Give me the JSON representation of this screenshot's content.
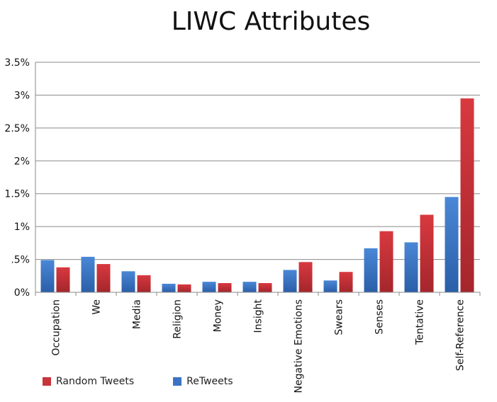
{
  "chart_data": {
    "type": "bar",
    "title": "LIWC Attributes",
    "xlabel": "",
    "ylabel": "",
    "categories": [
      "Occupation",
      "We",
      "Media",
      "Religion",
      "Money",
      "Insight",
      "Negative Emotions",
      "Swears",
      "Senses",
      "Tentative",
      "Self-Reference"
    ],
    "series": [
      {
        "name": "ReTweets",
        "color": "#3b74c4",
        "values": [
          0.49,
          0.54,
          0.32,
          0.13,
          0.16,
          0.16,
          0.34,
          0.18,
          0.67,
          0.76,
          1.45
        ]
      },
      {
        "name": "Random Tweets",
        "color": "#c9333a",
        "values": [
          0.38,
          0.43,
          0.26,
          0.12,
          0.14,
          0.14,
          0.46,
          0.31,
          0.93,
          1.18,
          2.95
        ]
      }
    ],
    "ylim": [
      0,
      3.5
    ],
    "yticks": [
      0,
      0.5,
      1,
      1.5,
      2,
      2.5,
      3,
      3.5
    ],
    "ytick_labels": [
      "0%",
      ".5%",
      "1%",
      "1.5%",
      "2%",
      "2.5%",
      "3%",
      "3.5%"
    ],
    "grid": true,
    "legend": {
      "position": "bottom-left",
      "order": [
        "Random Tweets",
        "ReTweets"
      ]
    }
  }
}
